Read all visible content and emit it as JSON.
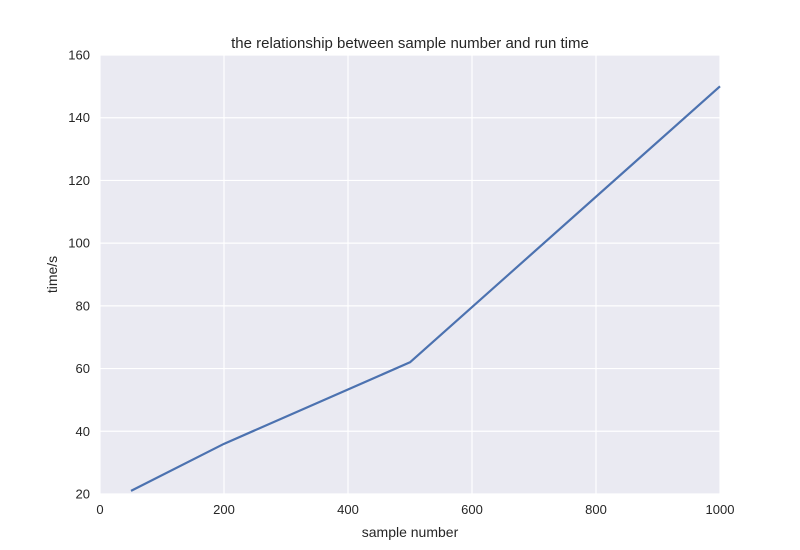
{
  "chart_data": {
    "type": "line",
    "title": "the relationship between sample number and run time",
    "xlabel": "sample number",
    "ylabel": "time/s",
    "xlim": [
      0,
      1000
    ],
    "ylim": [
      20,
      160
    ],
    "xticks": [
      0,
      200,
      400,
      600,
      800,
      1000
    ],
    "yticks": [
      20,
      40,
      60,
      80,
      100,
      120,
      140,
      160
    ],
    "grid": true,
    "series": [
      {
        "x": [
          50,
          200,
          500,
          1000
        ],
        "y": [
          21,
          36,
          62,
          150
        ],
        "color": "#4c72b0"
      }
    ]
  }
}
